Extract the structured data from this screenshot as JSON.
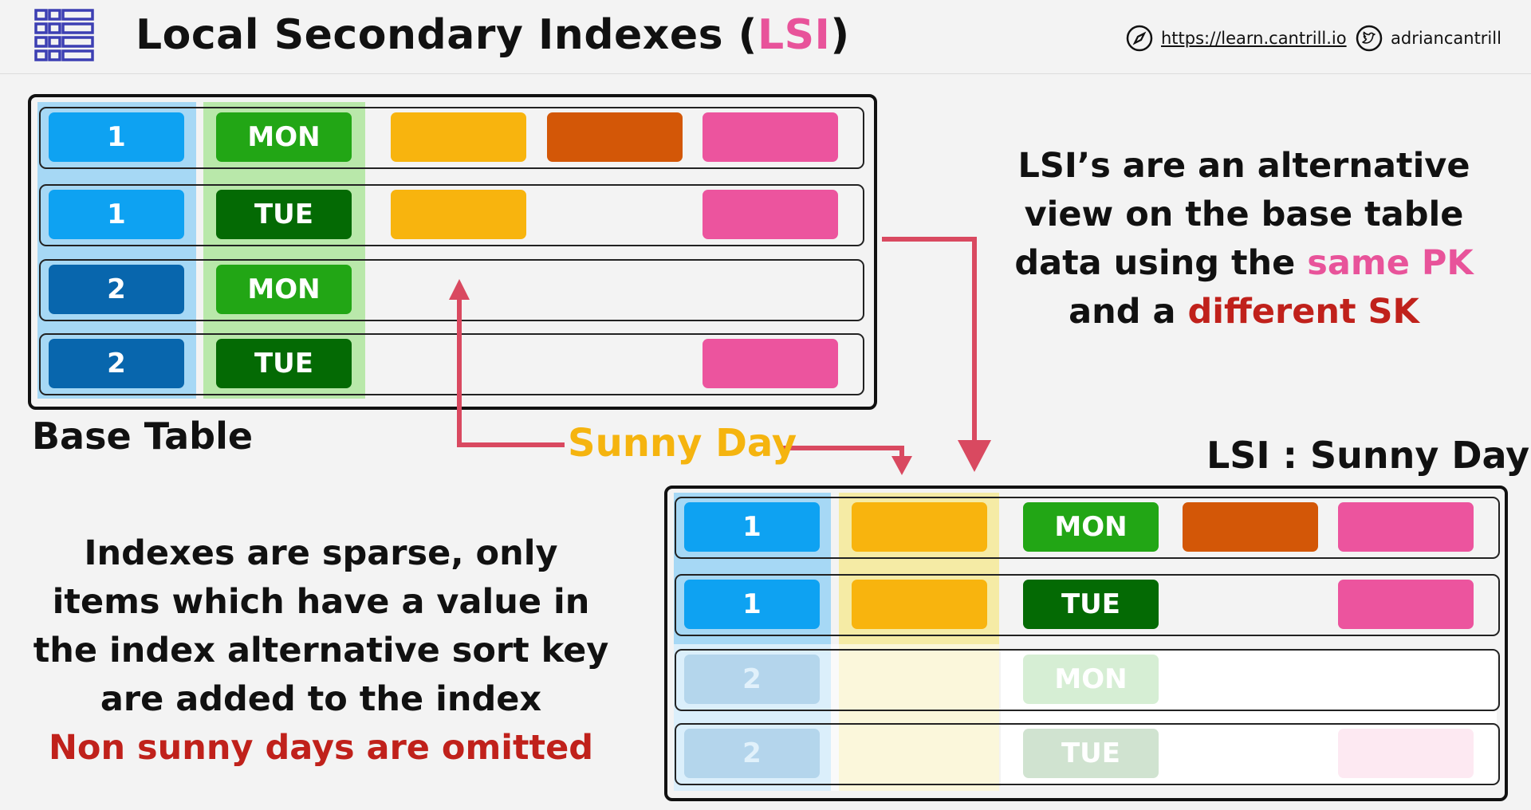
{
  "header": {
    "title_prefix": "Local Secondary Indexes (",
    "title_accent": "LSI",
    "title_suffix": ")",
    "website": "https://learn.cantrill.io",
    "twitter": "adriancantrill",
    "logo_icon": "table-grid-icon",
    "website_icon": "compass-icon",
    "twitter_icon": "twitter-bird-icon"
  },
  "colors": {
    "pk_blue": "#0ea2f2",
    "pk_darkblue": "#0866ad",
    "sk_green": "#22a615",
    "sk_darkgreen": "#046a04",
    "attr_yellow": "#f8b40e",
    "attr_orange": "#d35707",
    "attr_pink": "#ec549e",
    "arrow_red": "#d94960",
    "pk_band": "#a6d8f5",
    "sk_band": "#b9e8aa",
    "lsi_band": "#f5eba5"
  },
  "base_table": {
    "label": "Base Table",
    "rows": [
      {
        "pk": "1",
        "sk": "MON"
      },
      {
        "pk": "1",
        "sk": "TUE"
      },
      {
        "pk": "2",
        "sk": "MON"
      },
      {
        "pk": "2",
        "sk": "TUE"
      }
    ]
  },
  "lsi_table": {
    "label": "LSI : Sunny Day",
    "rows": [
      {
        "pk": "1",
        "sk": "MON"
      },
      {
        "pk": "1",
        "sk": "TUE"
      },
      {
        "pk": "2",
        "sk": "MON"
      },
      {
        "pk": "2",
        "sk": "TUE"
      }
    ]
  },
  "sunny_label": "Sunny Day",
  "explanation": {
    "line1": "LSI’s are an alternative",
    "line2": "view on the base table",
    "line3_prefix": "data using the ",
    "line3_accent": "same PK",
    "line4_prefix": "and a ",
    "line4_accent": "different SK"
  },
  "sparse_note": {
    "line1": "Indexes are sparse, only",
    "line2": "items which have a value in",
    "line3": "the index alternative sort key",
    "line4": "are added to the index",
    "line5": "Non sunny days are omitted"
  }
}
